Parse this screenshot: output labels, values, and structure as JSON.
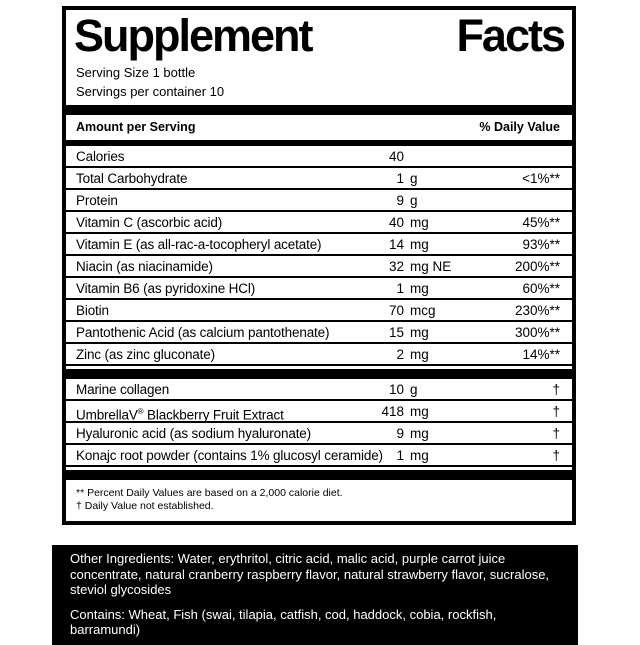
{
  "colors": {
    "black": "#000000",
    "white": "#ffffff"
  },
  "label": {
    "title": "Supplement Facts",
    "serving_size": "Serving Size 1 bottle",
    "servings_per_container": "Servings per container 10",
    "header": {
      "amount": "Amount per Serving",
      "dv": "% Daily Value"
    },
    "rows": [
      {
        "name": "Calories",
        "amount": "40",
        "unit": "",
        "dv": ""
      },
      {
        "name": "Total Carbohydrate",
        "amount": "1",
        "unit": "g",
        "dv": "<1%**"
      },
      {
        "name": "Protein",
        "amount": "9",
        "unit": "g",
        "dv": ""
      },
      {
        "name": "Vitamin C (ascorbic acid)",
        "amount": "40",
        "unit": "mg",
        "dv": "45%**"
      },
      {
        "name": "Vitamin E (as all-rac-a-tocopheryl acetate)",
        "amount": "14",
        "unit": "mg",
        "dv": "93%**"
      },
      {
        "name": "Niacin (as niacinamide)",
        "amount": "32",
        "unit": "mg NE",
        "dv": "200%**"
      },
      {
        "name": "Vitamin B6 (as pyridoxine HCl)",
        "amount": "1",
        "unit": "mg",
        "dv": "60%**"
      },
      {
        "name": "Biotin",
        "amount": "70",
        "unit": "mcg",
        "dv": "230%**"
      },
      {
        "name": "Pantothenic Acid (as calcium pantothenate)",
        "amount": "15",
        "unit": "mg",
        "dv": "300%**"
      },
      {
        "name": "Zinc (as zinc gluconate)",
        "amount": "2",
        "unit": "mg",
        "dv": "14%**"
      }
    ],
    "rows2": [
      {
        "name": "Marine collagen",
        "amount": "10",
        "unit": "g",
        "dv": "†"
      },
      {
        "name": "UmbrellaV",
        "sup": "®",
        "name_rest": " Blackberry Fruit Extract",
        "amount": "418",
        "unit": "mg",
        "dv": "†"
      },
      {
        "name": "Hyaluronic acid (as sodium hyaluronate)",
        "amount": "9",
        "unit": "mg",
        "dv": "†"
      },
      {
        "name": "Konajc root powder (contains 1% glucosyl ceramide)",
        "amount": "1",
        "unit": "mg",
        "dv": "†"
      }
    ],
    "footnotes": [
      "** Percent Daily Values are based on a 2,000 calorie diet.",
      "† Daily Value not established."
    ]
  },
  "ingredients": {
    "other": "Other Ingredients: Water, erythritol, citric acid, malic acid, purple carrot juice concentrate, natural cranberry raspberry flavor, natural strawberry flavor, sucralose, steviol glycosides",
    "contains": "Contains: Wheat, Fish (swai, tilapia, catfish, cod, haddock, cobia, rockfish, barramundi)"
  }
}
